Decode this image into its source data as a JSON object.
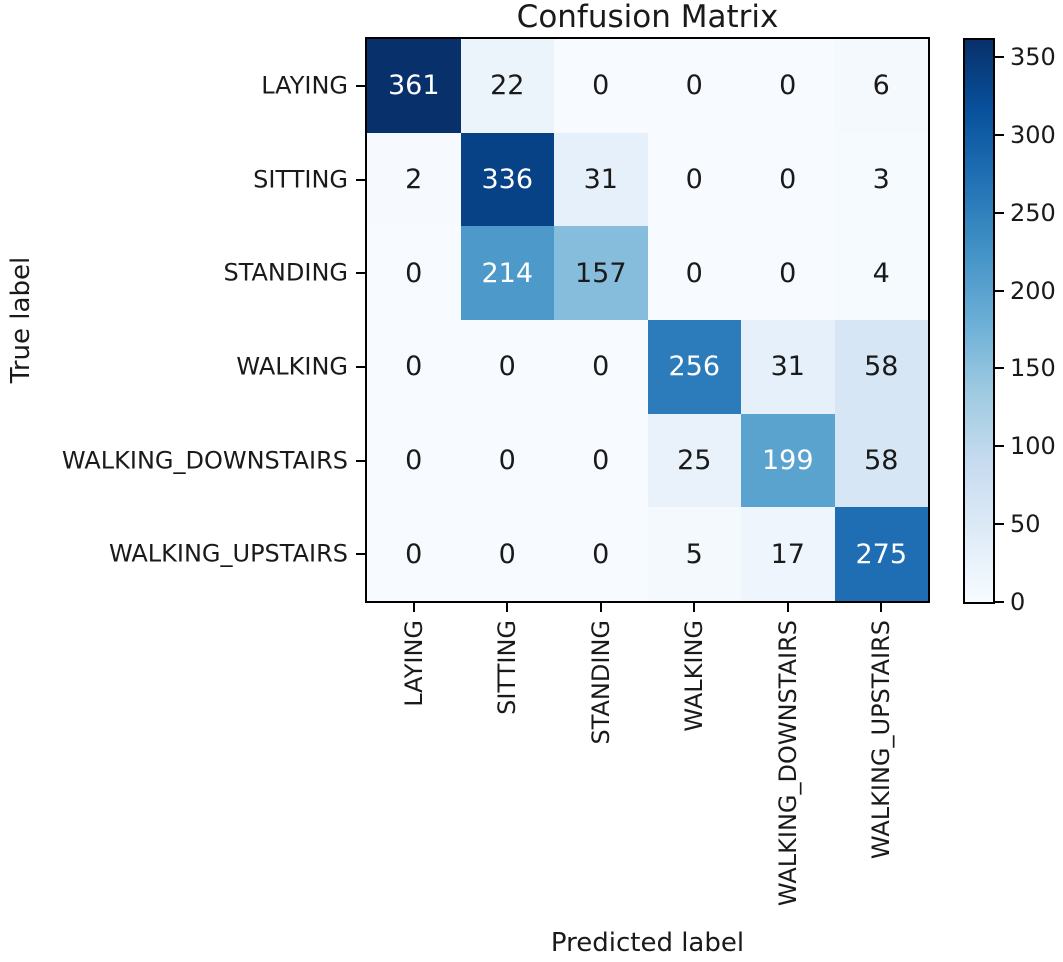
{
  "chart_data": {
    "type": "heatmap",
    "title": "Confusion Matrix",
    "xlabel": "Predicted label",
    "ylabel": "True label",
    "categories": [
      "LAYING",
      "SITTING",
      "STANDING",
      "WALKING",
      "WALKING_DOWNSTAIRS",
      "WALKING_UPSTAIRS"
    ],
    "matrix": [
      [
        361,
        22,
        0,
        0,
        0,
        6
      ],
      [
        2,
        336,
        31,
        0,
        0,
        3
      ],
      [
        0,
        214,
        157,
        0,
        0,
        4
      ],
      [
        0,
        0,
        0,
        256,
        31,
        58
      ],
      [
        0,
        0,
        0,
        25,
        199,
        58
      ],
      [
        0,
        0,
        0,
        5,
        17,
        275
      ]
    ],
    "vmin": 0,
    "vmax": 361,
    "colormap": "Blues",
    "colormap_stops": [
      "#f7fbff",
      "#deebf7",
      "#c6dbef",
      "#9ecae1",
      "#6baed6",
      "#4292c6",
      "#2171b5",
      "#08519c",
      "#08306b"
    ],
    "colorbar_ticks": [
      0,
      50,
      100,
      150,
      200,
      250,
      300,
      350
    ],
    "colorbar_position": "right",
    "grid": false,
    "cell_text_color_dark": "#1a1a1a",
    "cell_text_color_light": "#ffffff",
    "axis_color": "#000000"
  }
}
